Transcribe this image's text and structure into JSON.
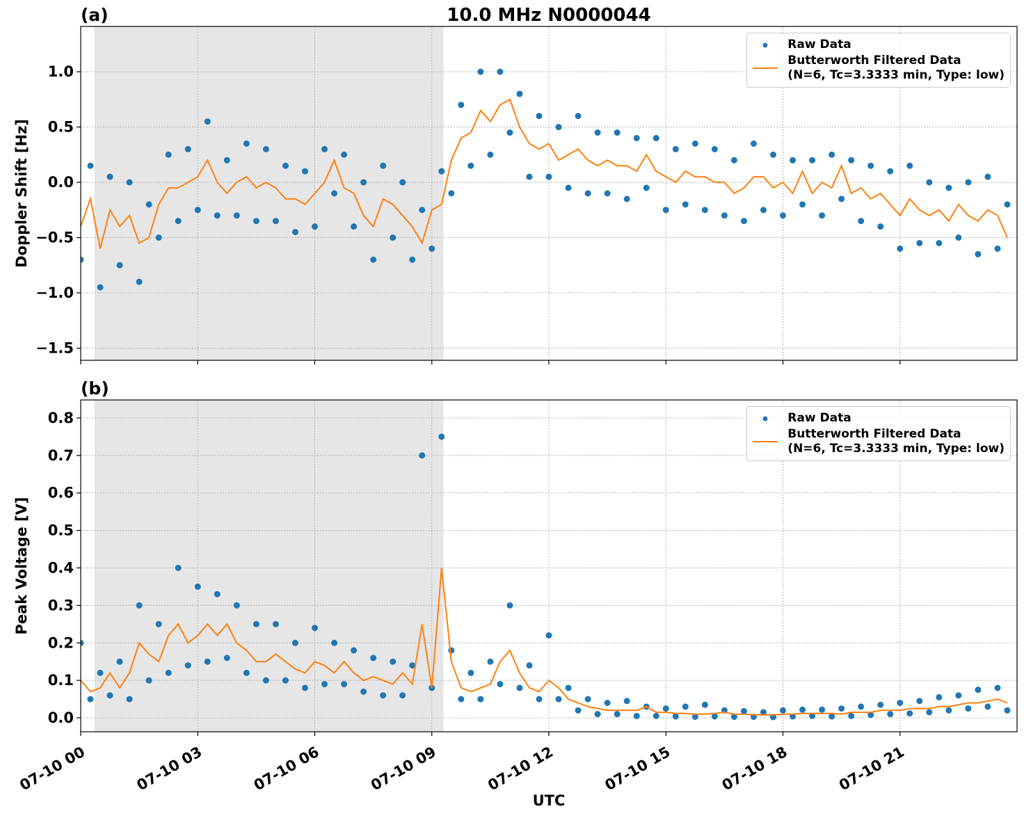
{
  "chart_data": [
    {
      "type": "line",
      "panel_label": "(a)",
      "title": "10.0 MHz N0000044",
      "ylabel": "Doppler Shift [Hz]",
      "x": [
        0,
        0.25,
        0.5,
        0.75,
        1,
        1.25,
        1.5,
        1.75,
        2,
        2.25,
        2.5,
        2.75,
        3,
        3.25,
        3.5,
        3.75,
        4,
        4.25,
        4.5,
        4.75,
        5,
        5.25,
        5.5,
        5.75,
        6,
        6.25,
        6.5,
        6.75,
        7,
        7.25,
        7.5,
        7.75,
        8,
        8.25,
        8.5,
        8.75,
        9,
        9.25,
        9.5,
        9.75,
        10,
        10.25,
        10.5,
        10.75,
        11,
        11.25,
        11.5,
        11.75,
        12,
        12.25,
        12.5,
        12.75,
        13,
        13.25,
        13.5,
        13.75,
        14,
        14.25,
        14.5,
        14.75,
        15,
        15.25,
        15.5,
        15.75,
        16,
        16.25,
        16.5,
        16.75,
        17,
        17.25,
        17.5,
        17.75,
        18,
        18.25,
        18.5,
        18.75,
        19,
        19.25,
        19.5,
        19.75,
        20,
        20.25,
        20.5,
        20.75,
        21,
        21.25,
        21.5,
        21.75,
        22,
        22.25,
        22.5,
        22.75,
        23,
        23.25,
        23.5,
        23.75
      ],
      "series": [
        {
          "name": "Raw Data",
          "color": "#1f77b4",
          "style": "dots",
          "values": [
            -0.7,
            0.15,
            -0.95,
            0.05,
            -0.75,
            0.0,
            -0.9,
            -0.2,
            -0.5,
            0.25,
            -0.35,
            0.3,
            -0.25,
            0.55,
            -0.3,
            0.2,
            -0.3,
            0.35,
            -0.35,
            0.3,
            -0.35,
            0.15,
            -0.45,
            0.1,
            -0.4,
            0.3,
            -0.1,
            0.25,
            -0.4,
            0.0,
            -0.7,
            0.15,
            -0.5,
            0.0,
            -0.7,
            -0.25,
            -0.6,
            0.1,
            -0.1,
            0.7,
            0.15,
            1.0,
            0.25,
            1.0,
            0.45,
            0.8,
            0.05,
            0.6,
            0.05,
            0.5,
            -0.05,
            0.6,
            -0.1,
            0.45,
            -0.1,
            0.45,
            -0.15,
            0.4,
            -0.05,
            0.4,
            -0.25,
            0.3,
            -0.2,
            0.35,
            -0.25,
            0.3,
            -0.3,
            0.2,
            -0.35,
            0.35,
            -0.25,
            0.25,
            -0.3,
            0.2,
            -0.2,
            0.2,
            -0.3,
            0.25,
            -0.15,
            0.2,
            -0.35,
            0.15,
            -0.4,
            0.1,
            -0.6,
            0.15,
            -0.55,
            0.0,
            -0.55,
            -0.05,
            -0.5,
            0.0,
            -0.65,
            0.05,
            -0.6,
            -0.2
          ]
        },
        {
          "name": "Butterworth Filtered Data\n(N=6, Tc=3.3333 min, Type: low)",
          "color": "#ff7f0e",
          "style": "line",
          "values": [
            -0.4,
            -0.15,
            -0.6,
            -0.25,
            -0.4,
            -0.3,
            -0.55,
            -0.5,
            -0.2,
            -0.05,
            -0.05,
            0.0,
            0.05,
            0.2,
            0.0,
            -0.1,
            0.0,
            0.05,
            -0.05,
            0.0,
            -0.05,
            -0.15,
            -0.15,
            -0.2,
            -0.1,
            0.0,
            0.2,
            -0.05,
            -0.1,
            -0.3,
            -0.4,
            -0.15,
            -0.2,
            -0.3,
            -0.4,
            -0.55,
            -0.25,
            -0.2,
            0.2,
            0.4,
            0.45,
            0.65,
            0.55,
            0.7,
            0.75,
            0.5,
            0.35,
            0.3,
            0.35,
            0.2,
            0.25,
            0.3,
            0.2,
            0.15,
            0.2,
            0.15,
            0.15,
            0.1,
            0.25,
            0.1,
            0.05,
            0.0,
            0.1,
            0.05,
            0.05,
            0.0,
            0.0,
            -0.1,
            -0.05,
            0.05,
            0.05,
            -0.05,
            0.0,
            -0.1,
            0.1,
            -0.1,
            0.0,
            -0.05,
            0.15,
            -0.1,
            -0.05,
            -0.15,
            -0.1,
            -0.2,
            -0.3,
            -0.15,
            -0.25,
            -0.3,
            -0.25,
            -0.35,
            -0.2,
            -0.3,
            -0.35,
            -0.25,
            -0.3,
            -0.5
          ]
        }
      ],
      "xlim": [
        0,
        24
      ],
      "xticks": [
        0,
        3,
        6,
        9,
        12,
        15,
        18,
        21
      ],
      "ylim": [
        -1.61,
        1.41
      ],
      "yticks": [
        {
          "value": -1.5,
          "label": "−1.5"
        },
        {
          "value": -1.0,
          "label": "−1.0"
        },
        {
          "value": -0.5,
          "label": "−0.5"
        },
        {
          "value": 0,
          "label": "0.0"
        },
        {
          "value": 0.5,
          "label": "0.5"
        },
        {
          "value": 1.0,
          "label": "1.0"
        }
      ],
      "grid": true,
      "legend": "upper right",
      "shaded_span": [
        0.35,
        9.3
      ]
    },
    {
      "type": "line",
      "panel_label": "(b)",
      "ylabel": "Peak Voltage [V]",
      "xlabel": "UTC",
      "x": [
        0,
        0.25,
        0.5,
        0.75,
        1,
        1.25,
        1.5,
        1.75,
        2,
        2.25,
        2.5,
        2.75,
        3,
        3.25,
        3.5,
        3.75,
        4,
        4.25,
        4.5,
        4.75,
        5,
        5.25,
        5.5,
        5.75,
        6,
        6.25,
        6.5,
        6.75,
        7,
        7.25,
        7.5,
        7.75,
        8,
        8.25,
        8.5,
        8.75,
        9,
        9.25,
        9.5,
        9.75,
        10,
        10.25,
        10.5,
        10.75,
        11,
        11.25,
        11.5,
        11.75,
        12,
        12.25,
        12.5,
        12.75,
        13,
        13.25,
        13.5,
        13.75,
        14,
        14.25,
        14.5,
        14.75,
        15,
        15.25,
        15.5,
        15.75,
        16,
        16.25,
        16.5,
        16.75,
        17,
        17.25,
        17.5,
        17.75,
        18,
        18.25,
        18.5,
        18.75,
        19,
        19.25,
        19.5,
        19.75,
        20,
        20.25,
        20.5,
        20.75,
        21,
        21.25,
        21.5,
        21.75,
        22,
        22.25,
        22.5,
        22.75,
        23,
        23.25,
        23.5,
        23.75
      ],
      "series": [
        {
          "name": "Raw Data",
          "color": "#1f77b4",
          "style": "dots",
          "values": [
            0.2,
            0.05,
            0.12,
            0.06,
            0.15,
            0.05,
            0.3,
            0.1,
            0.25,
            0.12,
            0.4,
            0.14,
            0.35,
            0.15,
            0.33,
            0.16,
            0.3,
            0.12,
            0.25,
            0.1,
            0.25,
            0.1,
            0.2,
            0.08,
            0.24,
            0.09,
            0.2,
            0.09,
            0.18,
            0.07,
            0.16,
            0.06,
            0.15,
            0.06,
            0.14,
            0.7,
            0.08,
            0.75,
            0.18,
            0.05,
            0.12,
            0.05,
            0.15,
            0.09,
            0.3,
            0.08,
            0.14,
            0.05,
            0.22,
            0.05,
            0.08,
            0.02,
            0.05,
            0.01,
            0.04,
            0.01,
            0.045,
            0.005,
            0.03,
            0.005,
            0.025,
            0.004,
            0.03,
            0.003,
            0.035,
            0.004,
            0.02,
            0.003,
            0.018,
            0.003,
            0.015,
            0.002,
            0.02,
            0.004,
            0.022,
            0.005,
            0.022,
            0.004,
            0.025,
            0.005,
            0.03,
            0.008,
            0.035,
            0.01,
            0.04,
            0.012,
            0.045,
            0.015,
            0.055,
            0.02,
            0.06,
            0.025,
            0.075,
            0.03,
            0.08,
            0.02
          ]
        },
        {
          "name": "Butterworth Filtered Data\n(N=6, Tc=3.3333 min, Type: low)",
          "color": "#ff7f0e",
          "style": "line",
          "values": [
            0.1,
            0.07,
            0.08,
            0.12,
            0.08,
            0.12,
            0.2,
            0.17,
            0.15,
            0.22,
            0.25,
            0.2,
            0.22,
            0.25,
            0.22,
            0.25,
            0.2,
            0.18,
            0.15,
            0.15,
            0.17,
            0.15,
            0.13,
            0.12,
            0.15,
            0.14,
            0.12,
            0.15,
            0.12,
            0.1,
            0.11,
            0.1,
            0.09,
            0.12,
            0.09,
            0.25,
            0.08,
            0.4,
            0.15,
            0.08,
            0.07,
            0.08,
            0.09,
            0.15,
            0.18,
            0.12,
            0.08,
            0.07,
            0.1,
            0.08,
            0.05,
            0.04,
            0.03,
            0.025,
            0.02,
            0.02,
            0.02,
            0.02,
            0.03,
            0.015,
            0.015,
            0.012,
            0.012,
            0.01,
            0.01,
            0.012,
            0.015,
            0.01,
            0.01,
            0.008,
            0.008,
            0.008,
            0.01,
            0.01,
            0.012,
            0.012,
            0.012,
            0.012,
            0.01,
            0.015,
            0.015,
            0.015,
            0.02,
            0.02,
            0.02,
            0.025,
            0.025,
            0.025,
            0.03,
            0.03,
            0.035,
            0.04,
            0.04,
            0.045,
            0.05,
            0.04
          ]
        }
      ],
      "xlim": [
        0,
        24
      ],
      "xticks": [
        {
          "value": 0,
          "label": "07-10 00"
        },
        {
          "value": 3,
          "label": "07-10 03"
        },
        {
          "value": 6,
          "label": "07-10 06"
        },
        {
          "value": 9,
          "label": "07-10 09"
        },
        {
          "value": 12,
          "label": "07-10 12"
        },
        {
          "value": 15,
          "label": "07-10 15"
        },
        {
          "value": 18,
          "label": "07-10 18"
        },
        {
          "value": 21,
          "label": "07-10 21"
        }
      ],
      "ylim": [
        -0.037,
        0.848
      ],
      "yticks": [
        {
          "value": 0,
          "label": "0.0"
        },
        {
          "value": 0.1,
          "label": "0.1"
        },
        {
          "value": 0.2,
          "label": "0.2"
        },
        {
          "value": 0.3,
          "label": "0.3"
        },
        {
          "value": 0.4,
          "label": "0.4"
        },
        {
          "value": 0.5,
          "label": "0.5"
        },
        {
          "value": 0.6,
          "label": "0.6"
        },
        {
          "value": 0.7,
          "label": "0.7"
        },
        {
          "value": 0.8,
          "label": "0.8"
        }
      ],
      "grid": true,
      "legend": "upper right",
      "shaded_span": [
        0.35,
        9.3
      ]
    }
  ]
}
